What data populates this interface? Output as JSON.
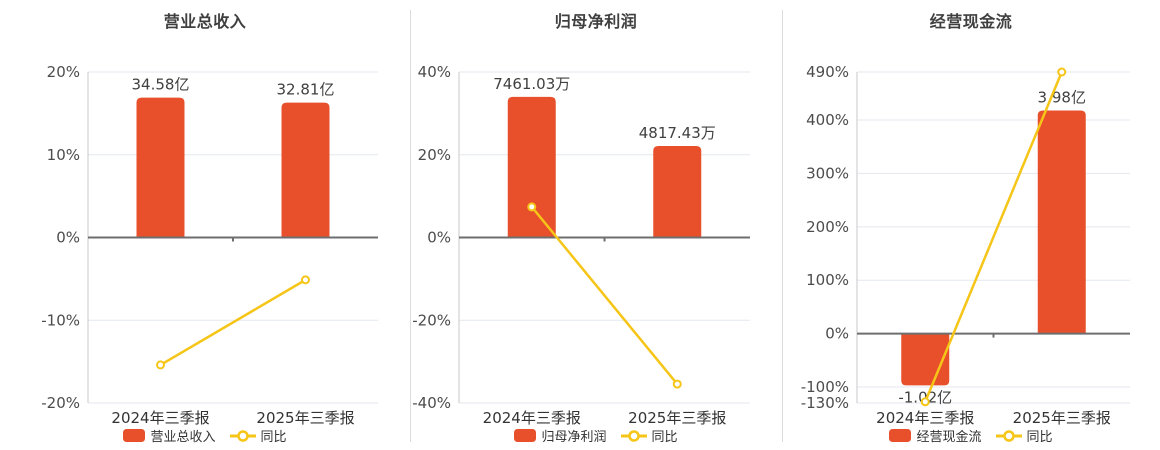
{
  "page": {
    "background": "#ffffff"
  },
  "colors": {
    "bar": "#e8502b",
    "line": "#f5c518",
    "title": "#3f3f3f",
    "tick_label": "#4c4c4c",
    "category_label": "#333333",
    "value_label": "#404040",
    "grid": "#e4e7ee",
    "zero_line": "#6e6e6e",
    "axis_line": "#c8c8c8",
    "divider": "#dcdcdc",
    "marker_fill": "#ffffff"
  },
  "chart_data": [
    {
      "type": "bar",
      "title": "营业总收入",
      "categories": [
        "2024年三季报",
        "2025年三季报"
      ],
      "bar_series": {
        "name": "营业总收入",
        "value_labels": [
          "34.58亿",
          "32.81亿"
        ],
        "drawn_pct": [
          16.9,
          16.3
        ]
      },
      "line_series": {
        "name": "同比",
        "values_pct": [
          -15.4,
          -5.12
        ]
      },
      "y_ticks": [
        20,
        10,
        0,
        -10,
        -20
      ],
      "tick_suffix": "%",
      "ylim": [
        -20,
        20
      ],
      "grid": true,
      "legend_position": "bottom"
    },
    {
      "type": "bar",
      "title": "归母净利润",
      "categories": [
        "2024年三季报",
        "2025年三季报"
      ],
      "bar_series": {
        "name": "归母净利润",
        "value_labels": [
          "7461.03万",
          "4817.43万"
        ],
        "drawn_pct": [
          34.0,
          22.1
        ]
      },
      "line_series": {
        "name": "同比",
        "values_pct": [
          7.4,
          -35.43
        ]
      },
      "y_ticks": [
        40,
        20,
        0,
        -20,
        -40
      ],
      "tick_suffix": "%",
      "ylim": [
        -40,
        40
      ],
      "grid": true,
      "legend_position": "bottom"
    },
    {
      "type": "bar",
      "title": "经营现金流",
      "categories": [
        "2024年三季报",
        "2025年三季报"
      ],
      "bar_series": {
        "name": "经营现金流",
        "value_labels": [
          "-1.02亿",
          "3.98亿"
        ],
        "drawn_pct": [
          -97,
          418
        ]
      },
      "line_series": {
        "name": "同比",
        "values_pct": [
          -127.7,
          490
        ]
      },
      "y_ticks": [
        490,
        400,
        300,
        200,
        100,
        0,
        -100,
        -130
      ],
      "tick_suffix": "%",
      "ylim": [
        -130,
        490
      ],
      "grid": true,
      "legend_position": "bottom"
    }
  ]
}
